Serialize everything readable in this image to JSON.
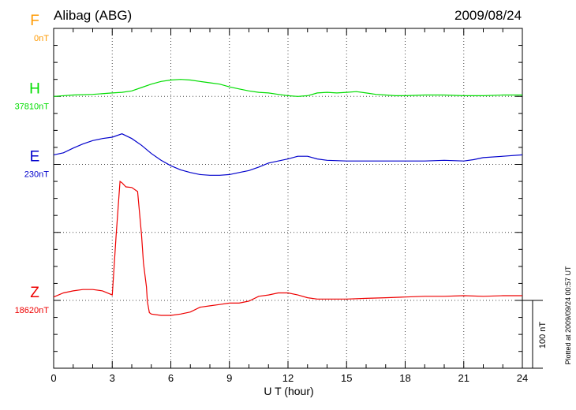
{
  "header": {
    "station": "Alibag (ABG)",
    "date": "2009/08/24"
  },
  "footer": {
    "plotted_at": "Plotted at 2009/09/24 00:57 UT"
  },
  "chart_data": {
    "type": "line",
    "xlabel": "U T (hour)",
    "xlim": [
      0,
      24
    ],
    "xticks": [
      0,
      3,
      6,
      9,
      12,
      15,
      18,
      21,
      24
    ],
    "ylabel": "",
    "scale_bar": "100 nT",
    "units_per_division": 100,
    "grid": true,
    "series": [
      {
        "name": "F",
        "baseline": "0nT",
        "color": "#ff9900",
        "offset_divisions": 4,
        "x": [],
        "y": []
      },
      {
        "name": "H",
        "baseline": "37810nT",
        "color": "#00dd00",
        "offset_divisions": 3,
        "x": [
          0,
          1,
          2,
          3,
          3.5,
          4,
          4.5,
          5,
          5.5,
          6,
          6.5,
          7,
          7.5,
          8,
          8.5,
          9,
          9.5,
          10,
          10.5,
          11,
          11.5,
          12,
          12.5,
          13,
          13.5,
          14,
          14.5,
          15,
          15.5,
          16,
          16.5,
          17,
          17.5,
          18,
          19,
          20,
          21,
          22,
          23,
          24
        ],
        "y": [
          0,
          2,
          3,
          5,
          6,
          8,
          13,
          18,
          22,
          24,
          25,
          24,
          22,
          20,
          18,
          14,
          11,
          8,
          6,
          5,
          3,
          1,
          0,
          1,
          5,
          6,
          5,
          6,
          7,
          5,
          3,
          2,
          1,
          1,
          2,
          2,
          1,
          1,
          2,
          2
        ]
      },
      {
        "name": "E",
        "baseline": "230nT",
        "color": "#0000cc",
        "offset_divisions": 2,
        "x": [
          0,
          0.5,
          1,
          1.5,
          2,
          2.5,
          3,
          3.5,
          4,
          4.5,
          5,
          5.5,
          6,
          6.5,
          7,
          7.5,
          8,
          8.5,
          9,
          9.5,
          10,
          10.5,
          11,
          11.5,
          12,
          12.5,
          13,
          13.5,
          14,
          15,
          16,
          17,
          18,
          19,
          20,
          21,
          21.5,
          22,
          23,
          24
        ],
        "y": [
          14,
          17,
          24,
          30,
          35,
          38,
          40,
          45,
          38,
          28,
          16,
          6,
          -2,
          -8,
          -12,
          -15,
          -16,
          -16,
          -15,
          -12,
          -9,
          -4,
          2,
          5,
          8,
          12,
          12,
          8,
          6,
          5,
          5,
          5,
          5,
          5,
          6,
          5,
          7,
          10,
          12,
          14
        ]
      },
      {
        "name": "Z",
        "baseline": "18620nT",
        "color": "#ee0000",
        "offset_divisions": 0,
        "x": [
          0,
          0.5,
          1,
          1.5,
          2,
          2.5,
          3,
          3.2,
          3.4,
          3.5,
          3.7,
          4,
          4.3,
          4.5,
          4.6,
          4.7,
          4.75,
          4.8,
          4.9,
          5,
          5.5,
          6,
          6.5,
          7,
          7.5,
          8,
          8.5,
          9,
          9.5,
          10,
          10.5,
          11,
          11.5,
          12,
          12.5,
          13,
          13.5,
          14,
          15,
          16,
          17,
          18,
          19,
          20,
          21,
          22,
          23,
          24
        ],
        "y": [
          5,
          11,
          14,
          16,
          16,
          14,
          8,
          96,
          175,
          173,
          167,
          166,
          160,
          96,
          55,
          32,
          20,
          -2,
          -18,
          -20,
          -22,
          -22,
          -20,
          -17,
          -10,
          -8,
          -6,
          -4,
          -4,
          -1,
          6,
          8,
          11,
          11,
          8,
          4,
          2,
          2,
          2,
          3,
          4,
          5,
          6,
          6,
          7,
          6,
          7,
          7
        ]
      }
    ]
  }
}
